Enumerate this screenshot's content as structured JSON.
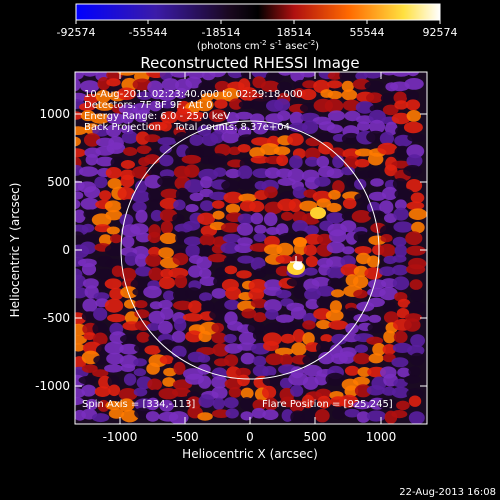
{
  "colorbar": {
    "tick_labels": [
      "-92574",
      "-55544",
      "-18514",
      "18514",
      "55544",
      "92574"
    ],
    "units_main": "(photons cm",
    "units_exp1": "-2",
    "units_s": " s",
    "units_exp2": "-1",
    "units_asec": " asec",
    "units_exp3": "-2",
    "units_close": ")",
    "palette": [
      "#0000ff",
      "#4a1a9a",
      "#000000",
      "#cc1010",
      "#ff8a00",
      "#ffff40",
      "#ffffff"
    ]
  },
  "title": "Reconstructed RHESSI Image",
  "annotations": {
    "time_range": "10-Aug-2011 02:23:40.000 to 02:29:18.000",
    "detectors": "Detectors: 7F 8F 9F, Att 0",
    "energy": "Energy Range: 6.0 - 25.0 keV",
    "method": "Back Projection",
    "total_counts": "Total counts: 8.37e+04",
    "spin_axis": "Spin Axis = [334,-113]",
    "flare_position": "Flare Position = [925,245]"
  },
  "axes": {
    "xlabel": "Heliocentric X (arcsec)",
    "ylabel": "Heliocentric Y (arcsec)",
    "x_ticks": [
      "-1000",
      "-500",
      "0",
      "500",
      "1000"
    ],
    "y_ticks": [
      "1000",
      "500",
      "0",
      "-500",
      "-1000"
    ]
  },
  "footer": {
    "date": "22-Aug-2013 16:08"
  }
}
